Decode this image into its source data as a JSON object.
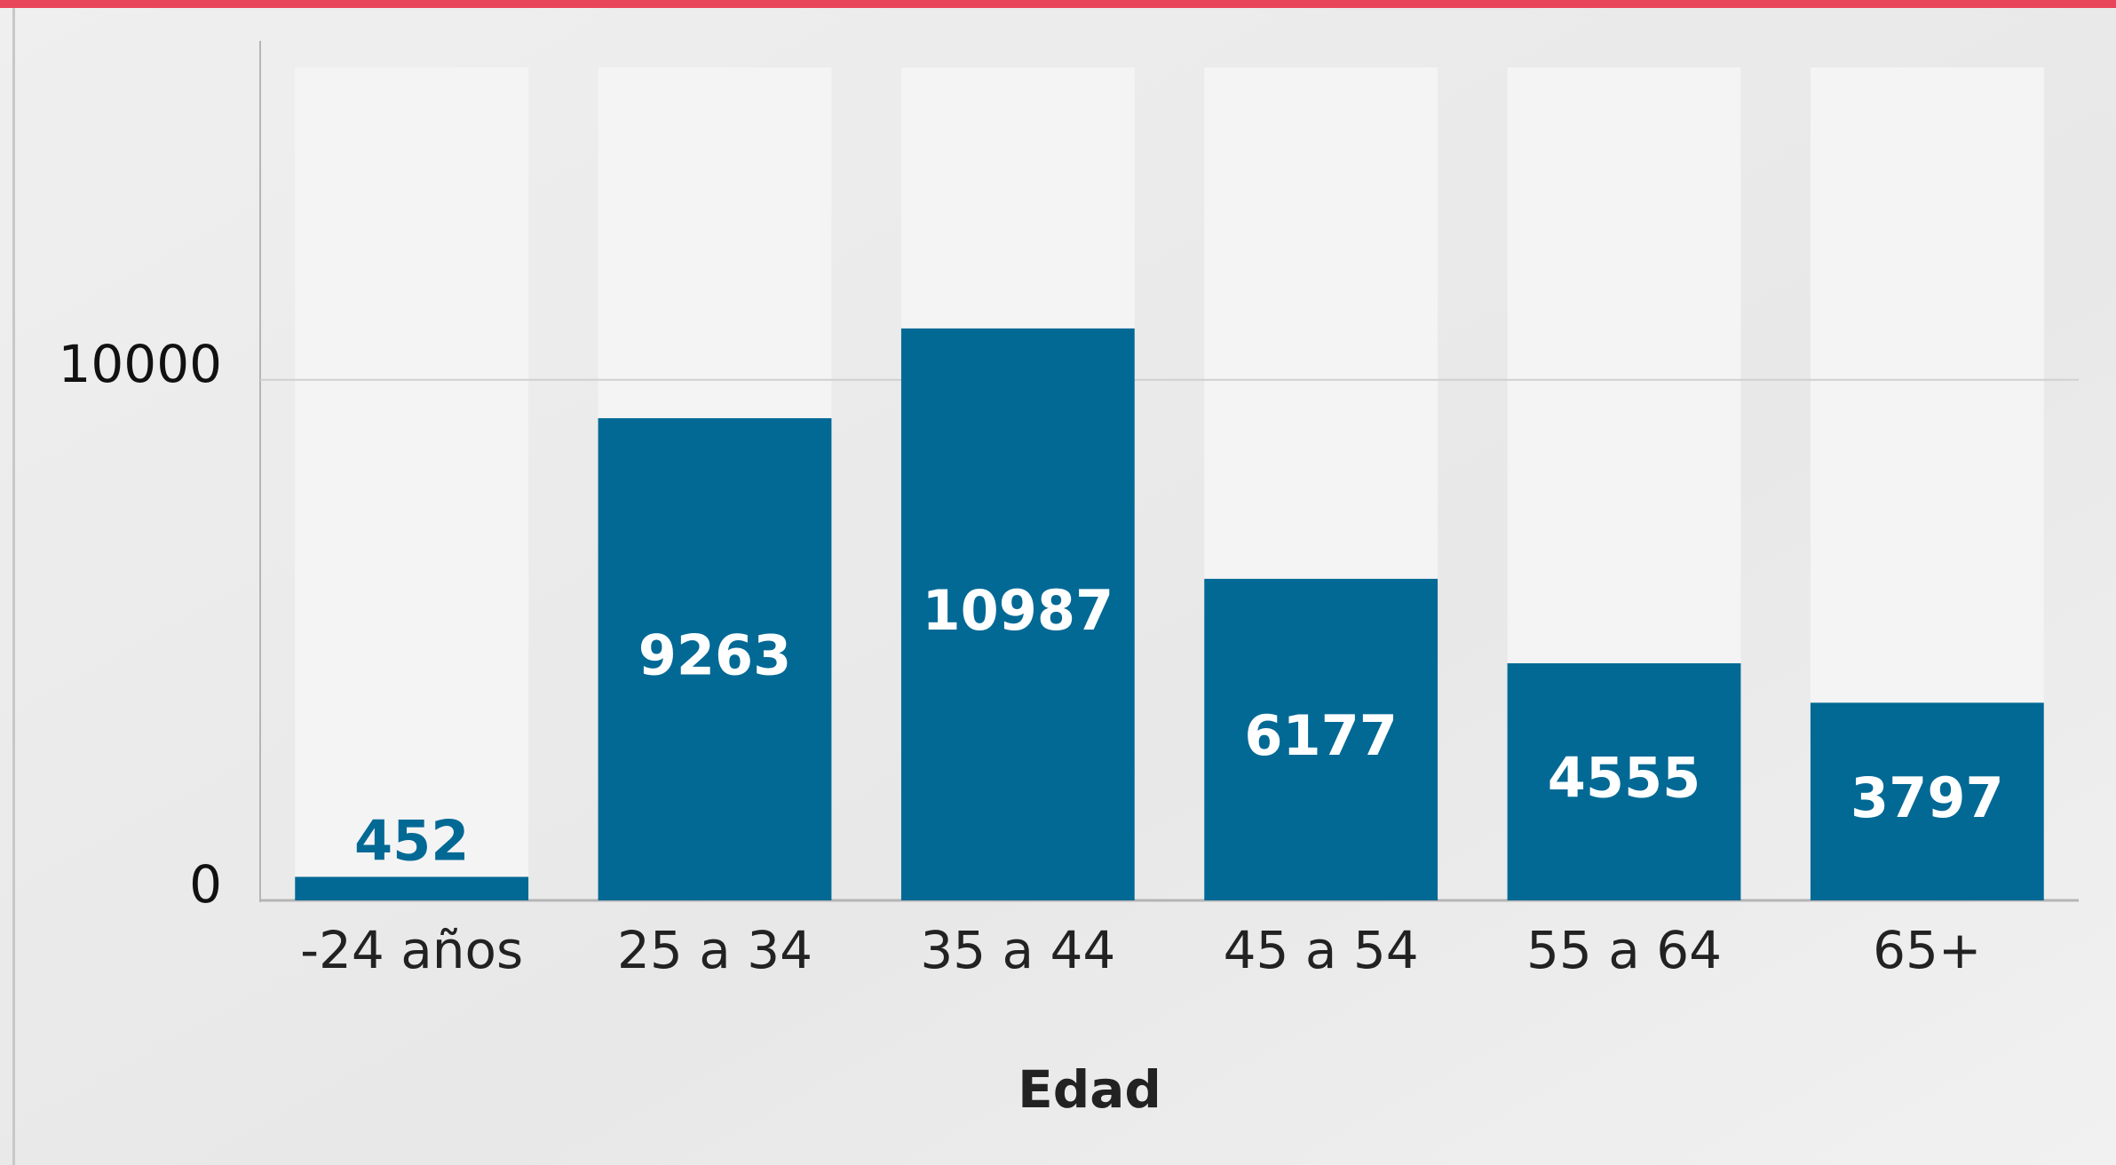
{
  "chart_data": {
    "type": "bar",
    "categories": [
      "-24 años",
      "25 a 34",
      "35 a 44",
      "45 a 54",
      "55 a 64",
      "65+"
    ],
    "values": [
      452,
      9263,
      10987,
      6177,
      4555,
      3797
    ],
    "color": "#026995",
    "xlabel": "Edad",
    "ylim": [
      0,
      16000
    ],
    "yticks": [
      0,
      10000
    ],
    "grid": true
  }
}
